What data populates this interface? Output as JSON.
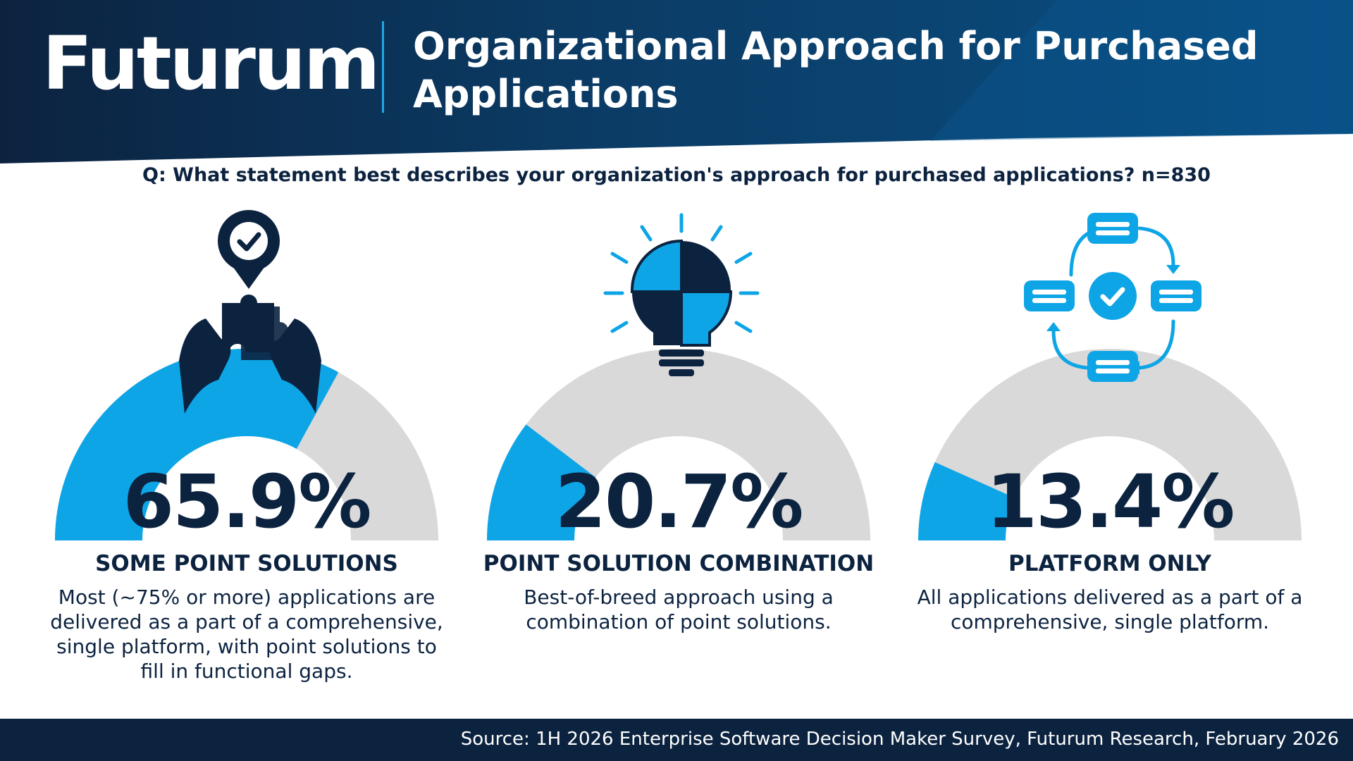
{
  "header": {
    "logo_text": "Futurum",
    "title": "Organizational Approach for Purchased Applications"
  },
  "question": "Q: What statement best describes your organization's approach for purchased applications? n=830",
  "chart_data": {
    "type": "gauge",
    "value_unit": "%",
    "range": [
      0,
      100
    ],
    "items": [
      {
        "value": 65.9,
        "value_label": "65.9%",
        "category": "SOME POINT SOLUTIONS",
        "description": "Most (~75% or more) applications are delivered as a part of a comprehensive, single platform, with point solutions to fill in functional gaps.",
        "icon": "hands-puzzle-check-icon"
      },
      {
        "value": 20.7,
        "value_label": "20.7%",
        "category": "POINT SOLUTION COMBINATION",
        "description": "Best-of-breed approach using a combination of point solutions.",
        "icon": "lightbulb-puzzle-icon"
      },
      {
        "value": 13.4,
        "value_label": "13.4%",
        "category": "PLATFORM ONLY",
        "description": "All applications delivered as a part of a comprehensive, single platform.",
        "icon": "platform-cycle-icon"
      }
    ]
  },
  "colors": {
    "fill": "#0ea5e6",
    "track": "#d9d9d9",
    "dark": "#0c2340",
    "header_mid": "#0a4a7a"
  },
  "footer": {
    "source": "Source: 1H 2026 Enterprise Software Decision Maker Survey, Futurum Research, February 2026"
  }
}
